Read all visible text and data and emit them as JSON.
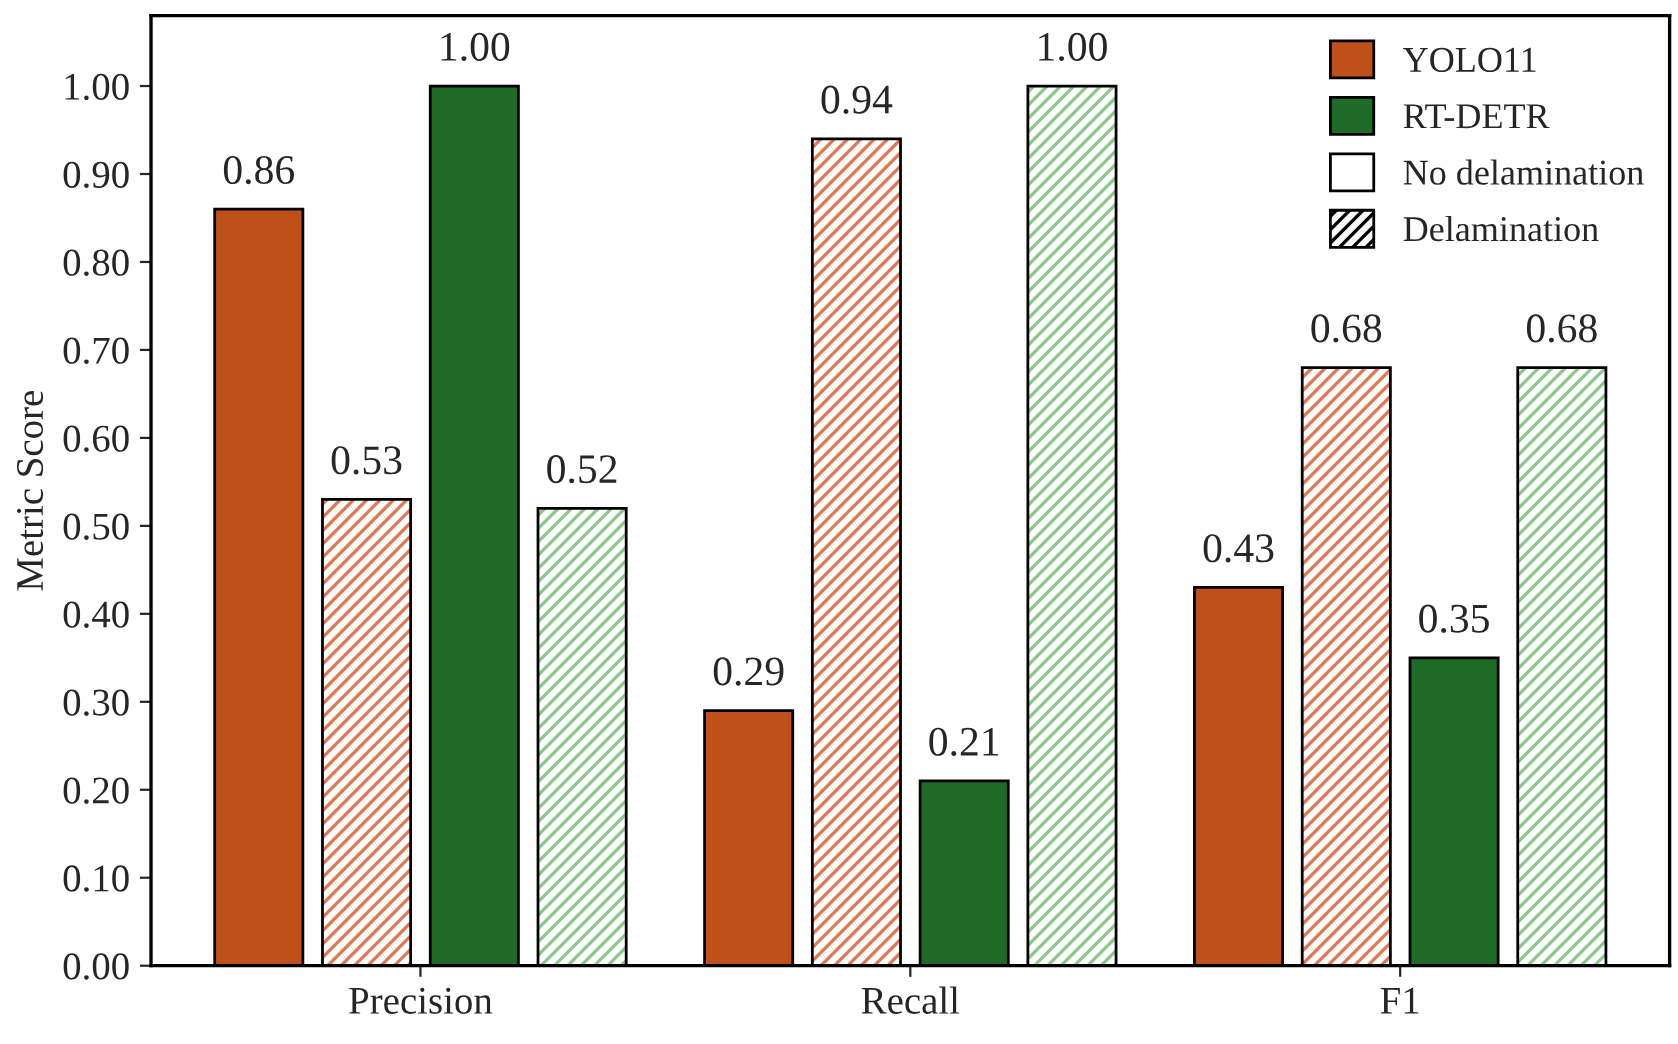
{
  "chart_data": {
    "type": "bar",
    "ylabel": "Metric Score",
    "categories": [
      "Precision",
      "Recall",
      "F1"
    ],
    "series": [
      {
        "name": "YOLO11",
        "color": "#c0501a",
        "values": [
          0.86,
          0.29,
          0.43
        ],
        "value_labels": [
          "0.86",
          "0.29",
          "0.43"
        ]
      },
      {
        "color": "#e07a55",
        "values": [
          0.53,
          0.94,
          0.68
        ],
        "value_labels": [
          "0.53",
          "0.94",
          "0.68"
        ]
      },
      {
        "name": "RT-DETR",
        "color": "#1e6b28",
        "values": [
          1.0,
          0.21,
          0.35
        ],
        "value_labels": [
          "1.00",
          "0.21",
          "0.35"
        ]
      },
      {
        "color": "#8cc98a",
        "values": [
          0.52,
          1.0,
          0.68
        ],
        "value_labels": [
          "0.52",
          "1.00",
          "0.68"
        ]
      }
    ],
    "annotations": [
      "No delamination",
      "Delamination"
    ],
    "ylim": [
      0,
      1.08
    ],
    "yticks": [
      {
        "value": 0,
        "label": "0.00"
      },
      {
        "value": 0.1,
        "label": "0.10"
      },
      {
        "value": 0.2,
        "label": "0.20"
      },
      {
        "value": 0.3,
        "label": "0.30"
      },
      {
        "value": 0.4,
        "label": "0.40"
      },
      {
        "value": 0.5,
        "label": "0.50"
      },
      {
        "value": 0.6,
        "label": "0.60"
      },
      {
        "value": 0.7,
        "label": "0.70"
      },
      {
        "value": 0.8,
        "label": "0.80"
      },
      {
        "value": 0.9,
        "label": "0.90"
      },
      {
        "value": 1.0,
        "label": "1.00"
      }
    ],
    "grid": false,
    "legend": "top right"
  }
}
